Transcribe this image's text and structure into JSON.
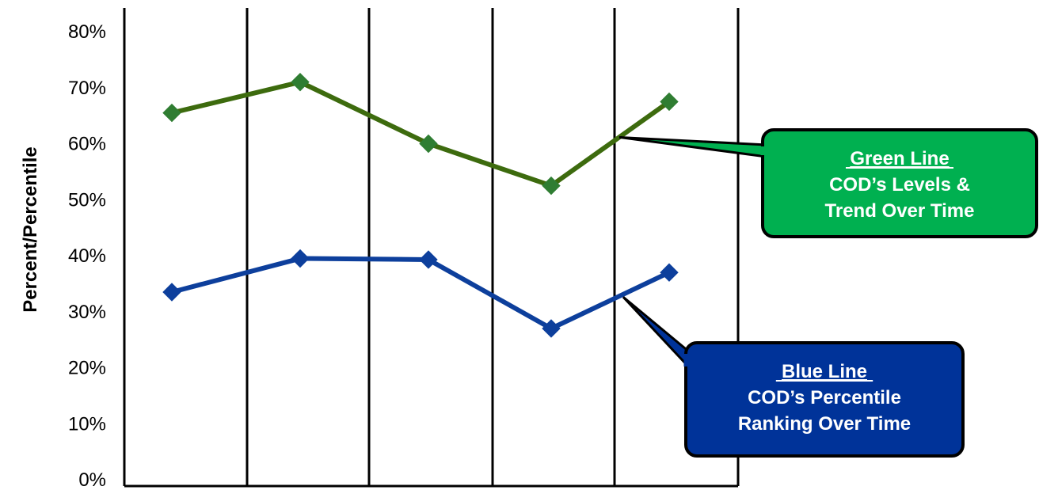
{
  "chart_data": {
    "type": "line",
    "title": "",
    "xlabel": "",
    "ylabel": "Percent/Percentile",
    "ylim": [
      0,
      80
    ],
    "yticks": [
      "0%",
      "10%",
      "20%",
      "30%",
      "40%",
      "50%",
      "60%",
      "70%",
      "80%"
    ],
    "x": [
      1,
      2,
      3,
      4,
      5
    ],
    "grid": "vertical",
    "series": [
      {
        "name": "Green Line",
        "color": "#3d6b0e",
        "marker_color": "#2f7d32",
        "values": [
          65.5,
          71,
          60,
          52.5,
          67.5
        ]
      },
      {
        "name": "Blue Line",
        "color": "#0d3f9c",
        "marker_color": "#0d3f9c",
        "values": [
          33.5,
          39.5,
          39.3,
          27,
          37
        ]
      }
    ],
    "annotations": [
      {
        "title": "Green Line",
        "lines": [
          "COD’s Levels &",
          "Trend Over Time"
        ],
        "fill": "#00b050",
        "text_color": "#ffffff",
        "target_series": 0
      },
      {
        "title": "Blue Line",
        "lines": [
          "COD’s Percentile",
          "Ranking Over Time"
        ],
        "fill": "#003399",
        "text_color": "#ffffff",
        "target_series": 1
      }
    ]
  }
}
